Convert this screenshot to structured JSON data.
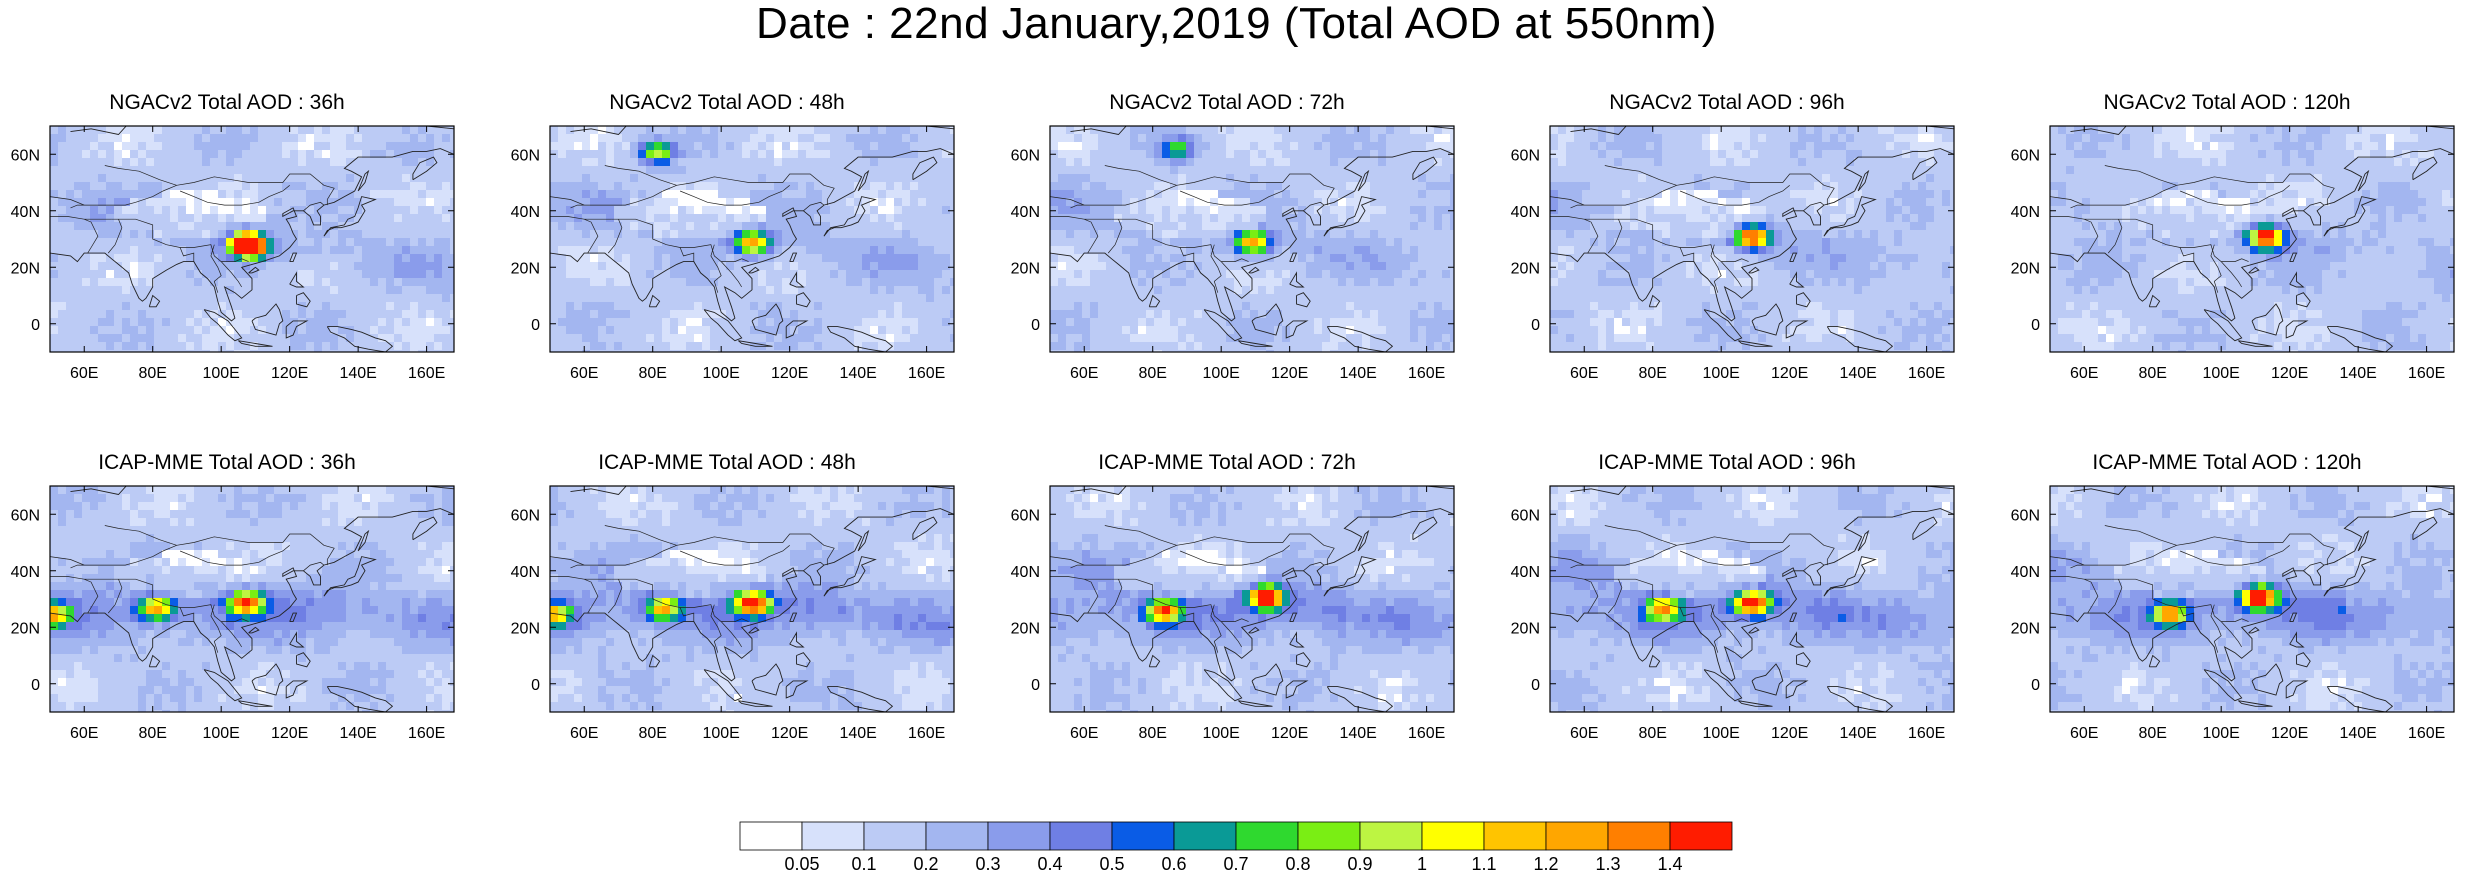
{
  "title": "Date : 22nd January,2019 (Total AOD at 550nm)",
  "map_axes": {
    "lon_ticks": [
      "60E",
      "80E",
      "100E",
      "120E",
      "140E",
      "160E"
    ],
    "lat_ticks": [
      "60N",
      "40N",
      "20N",
      "0"
    ],
    "lon_range": [
      50,
      168
    ],
    "lat_range": [
      -10,
      70
    ]
  },
  "panels": [
    {
      "title": "NGACv2 Total AOD : 36h",
      "model": "NGACv2",
      "lead": 36,
      "hotspots": [
        {
          "lon": 106,
          "lat": 30,
          "aod": 1.4
        },
        {
          "lon": 108,
          "lat": 28,
          "aod": 1.0
        }
      ]
    },
    {
      "title": "NGACv2 Total AOD : 48h",
      "model": "NGACv2",
      "lead": 48,
      "hotspots": [
        {
          "lon": 108,
          "lat": 30,
          "aod": 1.1
        },
        {
          "lon": 80,
          "lat": 62,
          "aod": 0.8
        }
      ]
    },
    {
      "title": "NGACv2 Total AOD : 72h",
      "model": "NGACv2",
      "lead": 72,
      "hotspots": [
        {
          "lon": 108,
          "lat": 30,
          "aod": 1.1
        },
        {
          "lon": 86,
          "lat": 63,
          "aod": 0.6
        }
      ]
    },
    {
      "title": "NGACv2 Total AOD : 96h",
      "model": "NGACv2",
      "lead": 96,
      "hotspots": [
        {
          "lon": 108,
          "lat": 32,
          "aod": 1.3
        }
      ]
    },
    {
      "title": "NGACv2 Total AOD : 120h",
      "model": "NGACv2",
      "lead": 120,
      "hotspots": [
        {
          "lon": 112,
          "lat": 32,
          "aod": 1.4
        }
      ]
    },
    {
      "title": "ICAP-MME Total AOD : 36h",
      "model": "ICAP-MME",
      "lead": 36,
      "hotspots": [
        {
          "lon": 80,
          "lat": 28,
          "aod": 1.0
        },
        {
          "lon": 106,
          "lat": 30,
          "aod": 1.2
        },
        {
          "lon": 50,
          "lat": 26,
          "aod": 0.9
        }
      ]
    },
    {
      "title": "ICAP-MME Total AOD : 48h",
      "model": "ICAP-MME",
      "lead": 48,
      "hotspots": [
        {
          "lon": 82,
          "lat": 28,
          "aod": 1.0
        },
        {
          "lon": 108,
          "lat": 30,
          "aod": 1.3
        },
        {
          "lon": 50,
          "lat": 26,
          "aod": 0.9
        }
      ]
    },
    {
      "title": "ICAP-MME Total AOD : 72h",
      "model": "ICAP-MME",
      "lead": 72,
      "hotspots": [
        {
          "lon": 82,
          "lat": 27,
          "aod": 1.1
        },
        {
          "lon": 112,
          "lat": 32,
          "aod": 1.4
        }
      ]
    },
    {
      "title": "ICAP-MME Total AOD : 96h",
      "model": "ICAP-MME",
      "lead": 96,
      "hotspots": [
        {
          "lon": 82,
          "lat": 28,
          "aod": 1.0
        },
        {
          "lon": 108,
          "lat": 30,
          "aod": 1.4
        }
      ]
    },
    {
      "title": "ICAP-MME Total AOD : 120h",
      "model": "ICAP-MME",
      "lead": 120,
      "hotspots": [
        {
          "lon": 84,
          "lat": 26,
          "aod": 1.0
        },
        {
          "lon": 110,
          "lat": 32,
          "aod": 1.4
        }
      ]
    }
  ],
  "colorbar": {
    "labels": [
      "0.05",
      "0.1",
      "0.2",
      "0.3",
      "0.4",
      "0.5",
      "0.6",
      "0.7",
      "0.8",
      "0.9",
      "1",
      "1.1",
      "1.2",
      "1.3",
      "1.4"
    ],
    "colors": [
      "#ffffff",
      "#d7e1fb",
      "#bccbf5",
      "#a3b6f0",
      "#8a9ceb",
      "#6f7fe4",
      "#0a5ce6",
      "#0a9a96",
      "#2fd92f",
      "#7aee14",
      "#bdf542",
      "#ffff00",
      "#ffc400",
      "#ffa600",
      "#ff7f00",
      "#ff1c00"
    ]
  }
}
